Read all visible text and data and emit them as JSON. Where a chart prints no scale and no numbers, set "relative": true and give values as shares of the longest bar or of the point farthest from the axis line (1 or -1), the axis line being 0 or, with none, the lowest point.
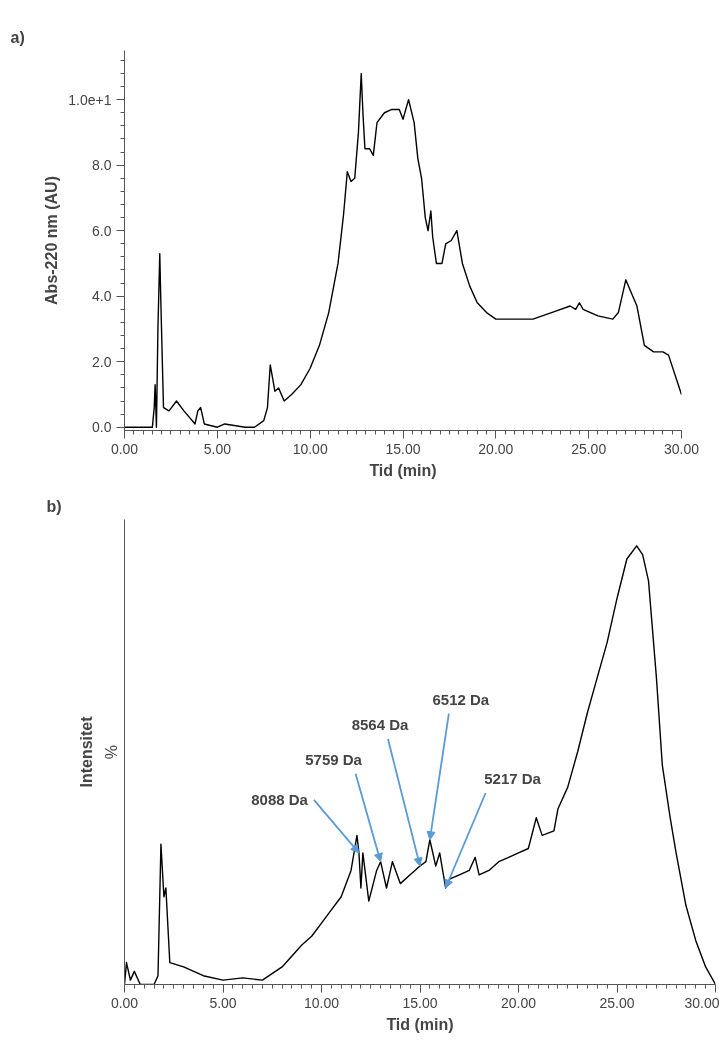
{
  "chart_data": [
    {
      "type": "line",
      "title": "a)",
      "xlabel": "Tid (min)",
      "ylabel": "Abs-220 nm (AU)",
      "xlim": [
        0,
        30
      ],
      "ylim": [
        -0.1,
        11.5
      ],
      "xticks": [
        {
          "value": 0,
          "label": "0.00"
        },
        {
          "value": 5,
          "label": "5.00"
        },
        {
          "value": 10,
          "label": "10.00"
        },
        {
          "value": 15,
          "label": "15.00"
        },
        {
          "value": 20,
          "label": "20.00"
        },
        {
          "value": 25,
          "label": "25.00"
        },
        {
          "value": 30,
          "label": "30.00"
        }
      ],
      "yticks": [
        {
          "value": 0,
          "label": "0.0"
        },
        {
          "value": 2,
          "label": "2.0"
        },
        {
          "value": 4,
          "label": "4.0"
        },
        {
          "value": 6,
          "label": "6.0"
        },
        {
          "value": 8,
          "label": "8.0"
        },
        {
          "value": 10,
          "label": "1.0e+1"
        }
      ],
      "grid": false,
      "marker": "none",
      "line_style": "solid",
      "series": [
        {
          "color": "#000000",
          "x": [
            0,
            1.5,
            1.6,
            1.65,
            1.72,
            1.8,
            1.9,
            1.95,
            2.1,
            2.4,
            2.8,
            3.2,
            3.8,
            3.95,
            4.1,
            4.3,
            5.0,
            5.4,
            6.5,
            7.0,
            7.5,
            7.7,
            7.85,
            8.1,
            8.3,
            8.6,
            9.0,
            9.5,
            10.0,
            10.5,
            11.0,
            11.5,
            11.8,
            12.0,
            12.2,
            12.4,
            12.6,
            12.75,
            12.85,
            12.95,
            13.2,
            13.4,
            13.6,
            14.0,
            14.4,
            14.8,
            15.0,
            15.3,
            15.6,
            15.8,
            16.0,
            16.2,
            16.35,
            16.5,
            16.6,
            16.8,
            17.1,
            17.3,
            17.6,
            17.9,
            18.2,
            18.6,
            19.0,
            19.5,
            20.0,
            21.0,
            22.0,
            23.0,
            24.0,
            24.3,
            24.5,
            24.7,
            25.5,
            26.3,
            26.6,
            27.0,
            27.3,
            27.6,
            28.0,
            28.5,
            29.0,
            29.3,
            30.0
          ],
          "values": [
            0.0,
            0.0,
            0.6,
            1.3,
            0.0,
            3.0,
            5.3,
            4.0,
            0.6,
            0.5,
            0.8,
            0.5,
            0.1,
            0.5,
            0.6,
            0.1,
            0.0,
            0.1,
            0.0,
            0.0,
            0.2,
            0.6,
            1.9,
            1.1,
            1.2,
            0.8,
            1.0,
            1.3,
            1.8,
            2.5,
            3.5,
            5.0,
            6.5,
            7.8,
            7.5,
            7.6,
            9.0,
            10.8,
            9.5,
            8.5,
            8.5,
            8.3,
            9.3,
            9.6,
            9.7,
            9.7,
            9.4,
            10.0,
            9.3,
            8.2,
            7.6,
            6.4,
            6.0,
            6.6,
            5.8,
            5.0,
            5.0,
            5.6,
            5.7,
            6.0,
            5.0,
            4.3,
            3.8,
            3.5,
            3.3,
            3.3,
            3.3,
            3.5,
            3.7,
            3.6,
            3.8,
            3.6,
            3.4,
            3.3,
            3.5,
            4.5,
            4.1,
            3.7,
            2.5,
            2.3,
            2.3,
            2.2,
            1.0
          ]
        }
      ]
    },
    {
      "type": "line",
      "title": "b)",
      "xlabel": "Tid (min)",
      "ylabel": "Intensitet",
      "relative": true,
      "tick_labels": "x",
      "xlim": [
        0,
        30
      ],
      "xticks": [
        {
          "value": 0,
          "label": "0.00"
        },
        {
          "value": 5,
          "label": "5.00"
        },
        {
          "value": 10,
          "label": "10.00"
        },
        {
          "value": 15,
          "label": "15.00"
        },
        {
          "value": 20,
          "label": "20.00"
        },
        {
          "value": 25,
          "label": "25.00"
        },
        {
          "value": 30,
          "label": "30.00"
        }
      ],
      "grid": false,
      "marker": "none",
      "line_style": "solid",
      "annotations": [
        "%",
        {
          "text": "8088 Da",
          "x": 11.9,
          "y": 0.3
        },
        {
          "text": "5759 Da",
          "x": 13.0,
          "y": 0.28
        },
        {
          "text": "8564 Da",
          "x": 15.0,
          "y": 0.27
        },
        {
          "text": "6512 Da",
          "x": 15.5,
          "y": 0.33
        },
        {
          "text": "5217 Da",
          "x": 16.3,
          "y": 0.22
        }
      ],
      "series": [
        {
          "color": "#000000",
          "x": [
            0,
            0.1,
            0.3,
            0.5,
            0.8,
            1.5,
            1.7,
            1.85,
            2.0,
            2.1,
            2.3,
            3,
            4,
            5,
            6,
            7,
            8,
            9,
            9.5,
            10,
            10.5,
            11,
            11.5,
            11.8,
            11.9,
            12.0,
            12.1,
            12.4,
            12.8,
            13.0,
            13.3,
            13.6,
            14.0,
            14.5,
            15.0,
            15.3,
            15.5,
            15.8,
            16.0,
            16.3,
            16.5,
            17.0,
            17.5,
            17.8,
            18.0,
            18.5,
            19.0,
            19.5,
            20.0,
            20.5,
            20.9,
            21.2,
            21.8,
            22.0,
            22.5,
            23.0,
            23.5,
            24.0,
            24.5,
            25.0,
            25.5,
            26.0,
            26.3,
            26.6,
            27.0,
            27.3,
            27.7,
            28.0,
            28.5,
            29.0,
            29.5,
            30.0
          ],
          "values": [
            0.0,
            0.05,
            0.01,
            0.03,
            0.0,
            0.0,
            0.02,
            0.32,
            0.2,
            0.22,
            0.05,
            0.04,
            0.02,
            0.01,
            0.015,
            0.01,
            0.04,
            0.09,
            0.11,
            0.14,
            0.17,
            0.2,
            0.26,
            0.34,
            0.3,
            0.22,
            0.3,
            0.19,
            0.26,
            0.28,
            0.22,
            0.28,
            0.23,
            0.25,
            0.27,
            0.28,
            0.33,
            0.27,
            0.3,
            0.22,
            0.24,
            0.25,
            0.26,
            0.29,
            0.25,
            0.26,
            0.28,
            0.29,
            0.3,
            0.31,
            0.38,
            0.34,
            0.35,
            0.4,
            0.45,
            0.53,
            0.62,
            0.7,
            0.78,
            0.88,
            0.97,
            1.0,
            0.98,
            0.92,
            0.7,
            0.5,
            0.38,
            0.3,
            0.18,
            0.1,
            0.04,
            0.0
          ]
        }
      ]
    }
  ]
}
